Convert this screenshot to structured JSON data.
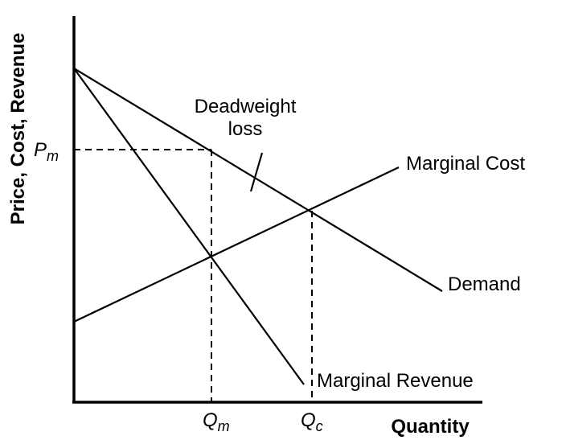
{
  "axes": {
    "y_label": "Price, Cost, Revenue",
    "x_label": "Quantity"
  },
  "price_monopoly": {
    "symbol": "P",
    "subscript": "m"
  },
  "quantity_monopoly": {
    "symbol": "Q",
    "subscript": "m"
  },
  "quantity_competitive": {
    "symbol": "Q",
    "subscript": "c"
  },
  "deadweight_loss": {
    "lines": [
      "Deadweight",
      "loss"
    ]
  },
  "curves": {
    "marginal_cost": "Marginal Cost",
    "demand": "Demand",
    "marginal_revenue": "Marginal Revenue"
  }
}
